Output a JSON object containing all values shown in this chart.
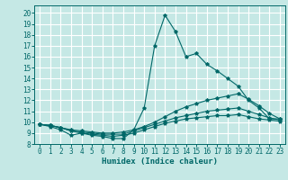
{
  "xlabel": "Humidex (Indice chaleur)",
  "bg_color": "#c5e8e5",
  "grid_color": "#ffffff",
  "line_color": "#006868",
  "xlim": [
    -0.5,
    23.5
  ],
  "ylim": [
    8.0,
    20.7
  ],
  "yticks": [
    8,
    9,
    10,
    11,
    12,
    13,
    14,
    15,
    16,
    17,
    18,
    19,
    20
  ],
  "xticks": [
    0,
    1,
    2,
    3,
    4,
    5,
    6,
    7,
    8,
    9,
    10,
    11,
    12,
    13,
    14,
    15,
    16,
    17,
    18,
    19,
    20,
    21,
    22,
    23
  ],
  "series": [
    {
      "x": [
        0,
        1,
        2,
        3,
        4,
        5,
        6,
        7,
        8,
        9,
        10,
        11,
        12,
        13,
        14,
        15,
        16,
        17,
        18,
        19,
        20,
        21,
        22,
        23
      ],
      "y": [
        9.8,
        9.6,
        9.3,
        8.8,
        9.0,
        8.8,
        8.7,
        8.5,
        8.5,
        9.3,
        11.3,
        17.0,
        19.8,
        18.3,
        16.0,
        16.3,
        15.3,
        14.7,
        14.0,
        13.3,
        12.0,
        11.3,
        10.3,
        10.3
      ]
    },
    {
      "x": [
        0,
        1,
        2,
        3,
        4,
        5,
        6,
        7,
        8,
        9,
        10,
        11,
        12,
        13,
        14,
        15,
        16,
        17,
        18,
        19,
        20,
        21,
        22,
        23
      ],
      "y": [
        9.8,
        9.7,
        9.5,
        9.3,
        9.2,
        9.1,
        9.0,
        9.0,
        9.1,
        9.3,
        9.6,
        10.0,
        10.5,
        11.0,
        11.4,
        11.7,
        12.0,
        12.2,
        12.4,
        12.6,
        12.1,
        11.5,
        10.8,
        10.3
      ]
    },
    {
      "x": [
        0,
        1,
        2,
        3,
        4,
        5,
        6,
        7,
        8,
        9,
        10,
        11,
        12,
        13,
        14,
        15,
        16,
        17,
        18,
        19,
        20,
        21,
        22,
        23
      ],
      "y": [
        9.8,
        9.7,
        9.5,
        9.2,
        9.1,
        9.0,
        8.9,
        8.9,
        8.9,
        9.2,
        9.5,
        9.8,
        10.1,
        10.4,
        10.6,
        10.8,
        11.0,
        11.1,
        11.2,
        11.3,
        11.0,
        10.7,
        10.4,
        10.2
      ]
    },
    {
      "x": [
        0,
        1,
        2,
        3,
        4,
        5,
        6,
        7,
        8,
        9,
        10,
        11,
        12,
        13,
        14,
        15,
        16,
        17,
        18,
        19,
        20,
        21,
        22,
        23
      ],
      "y": [
        9.8,
        9.7,
        9.5,
        9.2,
        9.0,
        8.9,
        8.8,
        8.7,
        8.8,
        9.0,
        9.3,
        9.6,
        9.9,
        10.1,
        10.3,
        10.4,
        10.5,
        10.6,
        10.6,
        10.7,
        10.5,
        10.3,
        10.2,
        10.1
      ]
    }
  ]
}
